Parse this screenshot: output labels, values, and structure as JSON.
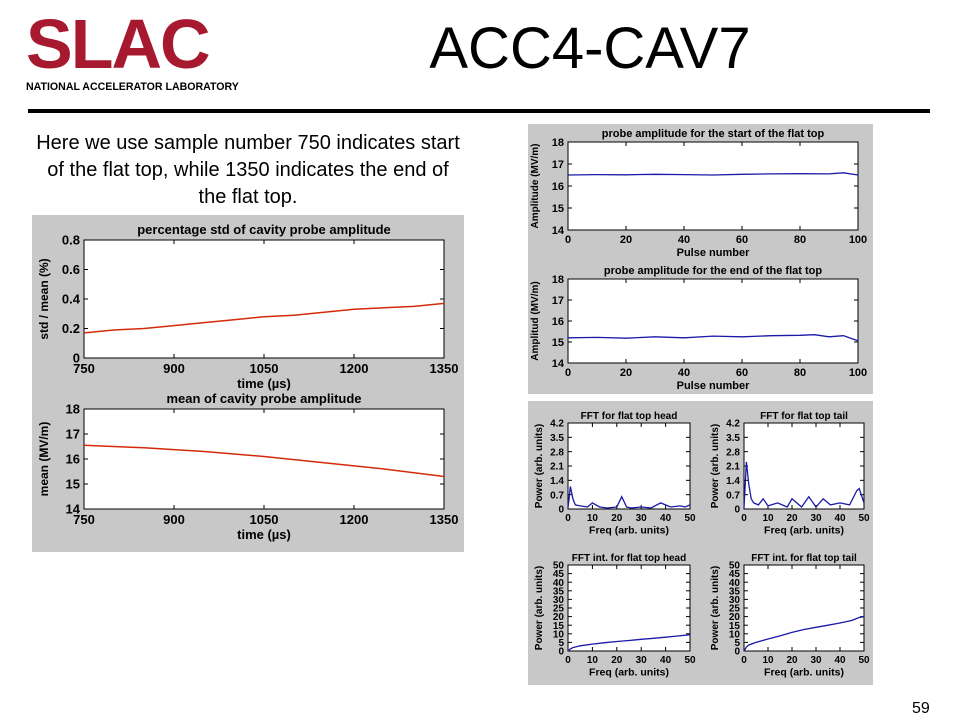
{
  "header": {
    "logo_text": "SLAC",
    "logo_subtitle": "NATIONAL ACCELERATOR LABORATORY",
    "title": "ACC4-CAV7"
  },
  "intro_text": "Here we use sample number 750 indicates start of the flat top, while 1350 indicates the end of the flat top.",
  "page_number": "59",
  "colors": {
    "logo": "#a6192e",
    "red_trace": "#d42a0a",
    "blue_trace": "#1a1aa8",
    "panel_bg": "#c8c8c8"
  },
  "chart_data": [
    {
      "id": "pct_std",
      "type": "line",
      "title": "percentage std of cavity probe amplitude",
      "xlabel": "time (µs)",
      "ylabel": "std / mean (%)",
      "xlim": [
        750,
        1350
      ],
      "ylim": [
        0,
        0.8
      ],
      "xticks": [
        750,
        900,
        1050,
        1200,
        1350
      ],
      "yticks": [
        0,
        0.2,
        0.4,
        0.6,
        0.8
      ],
      "ytick_labels": [
        "0",
        "0.2",
        "0.4",
        "0.6",
        "0.8"
      ],
      "grid": false,
      "color": "#d42a0a",
      "x": [
        750,
        800,
        850,
        900,
        950,
        1000,
        1050,
        1100,
        1150,
        1200,
        1250,
        1300,
        1350
      ],
      "y": [
        0.17,
        0.19,
        0.2,
        0.22,
        0.24,
        0.26,
        0.28,
        0.29,
        0.31,
        0.33,
        0.34,
        0.35,
        0.37
      ]
    },
    {
      "id": "mean_amp",
      "type": "line",
      "title": "mean of cavity probe amplitude",
      "xlabel": "time (µs)",
      "ylabel": "mean (MV/m)",
      "xlim": [
        750,
        1350
      ],
      "ylim": [
        14,
        18
      ],
      "xticks": [
        750,
        900,
        1050,
        1200,
        1350
      ],
      "yticks": [
        14,
        15,
        16,
        17,
        18
      ],
      "ytick_labels": [
        "14",
        "15",
        "16",
        "17",
        "18"
      ],
      "grid": false,
      "color": "#d42a0a",
      "x": [
        750,
        850,
        950,
        1050,
        1150,
        1250,
        1350
      ],
      "y": [
        16.55,
        16.45,
        16.3,
        16.1,
        15.85,
        15.6,
        15.3
      ]
    },
    {
      "id": "probe_start",
      "type": "line",
      "title": "probe amplitude for the start of the flat top",
      "xlabel": "Pulse number",
      "ylabel": "Amplitude (MV/m)",
      "xlim": [
        0,
        100
      ],
      "ylim": [
        14,
        18
      ],
      "xticks": [
        0,
        20,
        40,
        60,
        80,
        100
      ],
      "yticks": [
        14,
        15,
        16,
        17,
        18
      ],
      "ytick_labels": [
        "14",
        "15",
        "16",
        "17",
        "18"
      ],
      "grid": false,
      "color": "#1a1aa8",
      "x": [
        0,
        10,
        20,
        30,
        40,
        50,
        60,
        70,
        80,
        90,
        95,
        100
      ],
      "y": [
        16.5,
        16.52,
        16.51,
        16.53,
        16.52,
        16.5,
        16.53,
        16.55,
        16.56,
        16.55,
        16.6,
        16.5
      ]
    },
    {
      "id": "probe_end",
      "type": "line",
      "title": "probe amplitude for the end of the flat top",
      "xlabel": "Pulse number",
      "ylabel": "Amplitud (MV/m)",
      "xlim": [
        0,
        100
      ],
      "ylim": [
        14,
        18
      ],
      "xticks": [
        0,
        20,
        40,
        60,
        80,
        100
      ],
      "yticks": [
        14,
        15,
        16,
        17,
        18
      ],
      "ytick_labels": [
        "14",
        "15",
        "16",
        "17",
        "18"
      ],
      "grid": false,
      "color": "#1a1aa8",
      "x": [
        0,
        10,
        20,
        30,
        40,
        50,
        60,
        70,
        80,
        85,
        90,
        95,
        100
      ],
      "y": [
        15.2,
        15.22,
        15.18,
        15.25,
        15.2,
        15.28,
        15.25,
        15.3,
        15.32,
        15.35,
        15.25,
        15.3,
        15.05
      ]
    },
    {
      "id": "fft_head",
      "type": "line",
      "title": "FFT for flat top head",
      "xlabel": "Freq (arb. units)",
      "ylabel": "Power (arb. units)",
      "xlim": [
        0,
        50
      ],
      "ylim": [
        0,
        4.2
      ],
      "xticks": [
        0,
        10,
        20,
        30,
        40,
        50
      ],
      "yticks": [
        0,
        0.7,
        1.4,
        2.1,
        2.8,
        3.5,
        4.2
      ],
      "ytick_labels": [
        "0",
        "0.7",
        "1.4",
        "2.1",
        "2.8",
        "3.5",
        "4.2"
      ],
      "grid": false,
      "color": "#1a1aa8",
      "x": [
        0,
        1,
        2,
        3,
        5,
        8,
        10,
        13,
        16,
        20,
        22,
        24,
        26,
        30,
        34,
        38,
        42,
        46,
        48,
        50
      ],
      "y": [
        0.05,
        1.1,
        0.5,
        0.2,
        0.15,
        0.1,
        0.3,
        0.1,
        0.05,
        0.1,
        0.6,
        0.1,
        0.05,
        0.1,
        0.05,
        0.3,
        0.1,
        0.15,
        0.1,
        0.2
      ]
    },
    {
      "id": "fft_tail",
      "type": "line",
      "title": "FFT for flat top tail",
      "xlabel": "Freq (arb. units)",
      "ylabel": "Power (arb. units)",
      "xlim": [
        0,
        50
      ],
      "ylim": [
        0,
        4.2
      ],
      "xticks": [
        0,
        10,
        20,
        30,
        40,
        50
      ],
      "yticks": [
        0,
        0.7,
        1.4,
        2.1,
        2.8,
        3.5,
        4.2
      ],
      "ytick_labels": [
        "0",
        "0.7",
        "1.4",
        "2.1",
        "2.8",
        "3.5",
        "4.2"
      ],
      "grid": false,
      "color": "#1a1aa8",
      "x": [
        0,
        1,
        2,
        3,
        4,
        6,
        8,
        10,
        14,
        18,
        20,
        24,
        27,
        30,
        33,
        36,
        40,
        44,
        47,
        48,
        50
      ],
      "y": [
        0.05,
        2.3,
        1.2,
        0.5,
        0.3,
        0.2,
        0.5,
        0.15,
        0.3,
        0.1,
        0.5,
        0.1,
        0.6,
        0.1,
        0.5,
        0.2,
        0.3,
        0.2,
        0.9,
        1.0,
        0.3
      ]
    },
    {
      "id": "fft_int_head",
      "type": "line",
      "title": "FFT int. for flat top head",
      "xlabel": "Freq (arb. units)",
      "ylabel": "Power (arb. units)",
      "xlim": [
        0,
        50
      ],
      "ylim": [
        0,
        50
      ],
      "xticks": [
        0,
        10,
        20,
        30,
        40,
        50
      ],
      "yticks": [
        0,
        5,
        10,
        15,
        20,
        25,
        30,
        35,
        40,
        45,
        50
      ],
      "ytick_labels": [
        "0",
        "5",
        "10",
        "15",
        "20",
        "25",
        "30",
        "35",
        "40",
        "45",
        "50"
      ],
      "grid": false,
      "color": "#1a1aa8",
      "x": [
        0,
        1,
        2,
        5,
        10,
        15,
        20,
        25,
        30,
        35,
        40,
        45,
        50
      ],
      "y": [
        0,
        1.2,
        2.0,
        3.0,
        4.0,
        4.8,
        5.5,
        6.1,
        6.8,
        7.4,
        8.0,
        8.7,
        9.5
      ]
    },
    {
      "id": "fft_int_tail",
      "type": "line",
      "title": "FFT int. for flat top tail",
      "xlabel": "Freq (arb. units)",
      "ylabel": "Power (arb. units)",
      "xlim": [
        0,
        50
      ],
      "ylim": [
        0,
        50
      ],
      "xticks": [
        0,
        10,
        20,
        30,
        40,
        50
      ],
      "yticks": [
        0,
        5,
        10,
        15,
        20,
        25,
        30,
        35,
        40,
        45,
        50
      ],
      "ytick_labels": [
        "0",
        "5",
        "10",
        "15",
        "20",
        "25",
        "30",
        "35",
        "40",
        "45",
        "50"
      ],
      "grid": false,
      "color": "#1a1aa8",
      "x": [
        0,
        1,
        2,
        5,
        10,
        15,
        20,
        25,
        30,
        35,
        40,
        45,
        48,
        50
      ],
      "y": [
        0,
        2.3,
        3.5,
        5.0,
        7.0,
        8.8,
        10.8,
        12.5,
        13.8,
        15.0,
        16.3,
        17.8,
        19.5,
        20.0
      ]
    }
  ]
}
